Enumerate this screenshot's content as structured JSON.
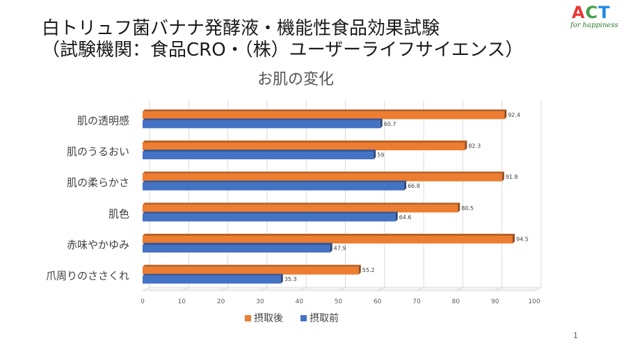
{
  "slide": {
    "title_line1": "白トリュフ菌バナナ発酵液・機能性食品効果試験",
    "title_line2": "（試験機関：食品CRO・（株）ユーザーライフサイエンス）",
    "page_number": "1"
  },
  "logo": {
    "letters": [
      "A",
      "C",
      "T"
    ],
    "letter_colors": [
      "#e53935",
      "#43a047",
      "#1e88e5"
    ],
    "tagline": "for happiness"
  },
  "chart_data": {
    "type": "bar",
    "orientation": "horizontal",
    "title": "お肌の変化",
    "categories": [
      "肌の透明感",
      "肌のうるおい",
      "肌の柔らかさ",
      "肌色",
      "赤味やかゆみ",
      "爪周りのささくれ"
    ],
    "series": [
      {
        "name": "摂取後",
        "color": "#ed7d31",
        "values": [
          92.4,
          82.3,
          91.8,
          80.5,
          94.5,
          55.2
        ]
      },
      {
        "name": "摂取前",
        "color": "#4472c4",
        "values": [
          60.7,
          59,
          66.8,
          64.6,
          47.9,
          35.3
        ]
      }
    ],
    "xlim": [
      0,
      100
    ],
    "xticks": [
      0,
      10,
      20,
      30,
      40,
      50,
      60,
      70,
      80,
      90,
      100
    ],
    "grid": true,
    "legend_position": "bottom",
    "data_labels": true
  }
}
